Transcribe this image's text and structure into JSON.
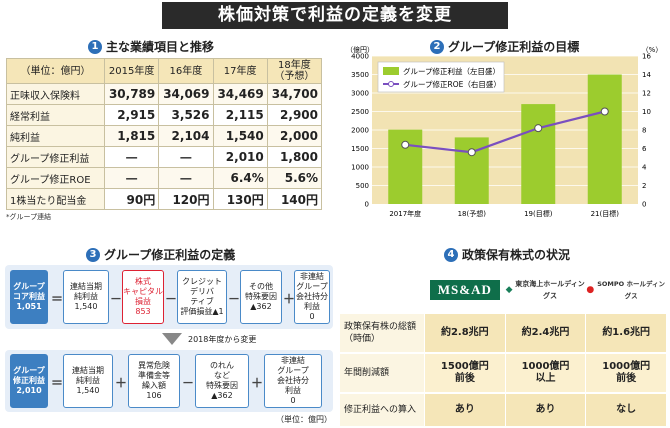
{
  "title": "株価対策で利益の定義を変更",
  "section1": {
    "num": "1",
    "title": "主な業績項目と推移"
  },
  "section2": {
    "num": "2",
    "title": "グループ修正利益の目標"
  },
  "section3": {
    "num": "3",
    "title": "グループ修正利益の定義"
  },
  "section4": {
    "num": "4",
    "title": "政策保有株式の状況"
  },
  "table1": {
    "headers": [
      "（単位：億円）",
      "2015年度",
      "16年度",
      "17年度",
      "18年度",
      "（予想）"
    ],
    "rows": [
      {
        "label": "正味収入保険料",
        "values": [
          "30,789",
          "34,069",
          "34,469",
          "34,700"
        ]
      },
      {
        "label": "経常利益",
        "values": [
          "2,915",
          "3,526",
          "2,115",
          "2,900"
        ]
      },
      {
        "label": "純利益",
        "values": [
          "1,815",
          "2,104",
          "1,540",
          "2,000"
        ]
      },
      {
        "label": "グループ修正利益",
        "values": [
          "―",
          "―",
          "2,010",
          "1,800"
        ]
      },
      {
        "label": "グループ修正ROE",
        "values": [
          "―",
          "―",
          "6.4%",
          "5.6%"
        ]
      },
      {
        "label": "1株当たり配当金",
        "values": [
          "90円",
          "120円",
          "130円",
          "140円"
        ]
      }
    ],
    "note": "*グループ連結"
  },
  "chart_data": {
    "type": "bar",
    "categories": [
      "2017年度",
      "18(予想)",
      "19(目標)",
      "21(目標)"
    ],
    "series": [
      {
        "name": "グループ修正利益（左目盛）",
        "type": "bar",
        "values": [
          2010,
          1800,
          2700,
          3500
        ],
        "color": "#9ccc2e"
      },
      {
        "name": "グループ修正ROE（右目盛）",
        "type": "line",
        "values": [
          6.4,
          5.6,
          8.2,
          10.0
        ],
        "color": "#7a4fc0"
      }
    ],
    "ylabel_left": "（億円）",
    "ylabel_right": "（%）",
    "ylim_left": [
      0,
      4000
    ],
    "ylim_right": [
      0,
      16
    ],
    "yticks_left": [
      "0",
      "500",
      "1000",
      "1500",
      "2000",
      "2500",
      "3000",
      "3500",
      "4000"
    ],
    "yticks_right": [
      "0",
      "2",
      "4",
      "6",
      "8",
      "10",
      "12",
      "14",
      "16"
    ]
  },
  "diagram": {
    "top": {
      "result": [
        "グループ",
        "コア利益",
        "1,051"
      ],
      "eq": "＝",
      "b1": [
        "連結当期",
        "純利益",
        "1,540"
      ],
      "op1": "－",
      "b2": [
        "株式",
        "キャピタル",
        "損益",
        "853"
      ],
      "op2": "－",
      "b3": [
        "クレジット",
        "デリバ",
        "ティブ",
        "評価損益▲1"
      ],
      "op3": "－",
      "b4": [
        "その他",
        "特殊要因",
        "▲362"
      ],
      "op4": "＋",
      "b5": [
        "非連結",
        "グループ",
        "会社持分",
        "利益",
        "0"
      ]
    },
    "change": "2018年度から変更",
    "bottom": {
      "result": [
        "グループ",
        "修正利益",
        "2,010"
      ],
      "eq": "＝",
      "b1": [
        "連結当期",
        "純利益",
        "1,540"
      ],
      "op1": "＋",
      "b2": [
        "異常危険",
        "準備金等",
        "繰入額",
        "106"
      ],
      "op2": "－",
      "b3": [
        "のれん",
        "など",
        "特殊要因",
        "▲362"
      ],
      "op3": "＋",
      "b4": [
        "非連結",
        "グループ",
        "会社持分",
        "利益",
        "0"
      ]
    },
    "unit": "（単位：億円）"
  },
  "table4": {
    "companies": [
      "MS&AD",
      "東京海上ホールディングス",
      "SOMPO ホールディングス"
    ],
    "rows": [
      {
        "label": "政策保有株の総額（時価）",
        "values": [
          "約2.8兆円",
          "約2.4兆円",
          "約1.6兆円"
        ]
      },
      {
        "label": "年間削減額",
        "values": [
          "1500億円前後",
          "1000億円以上",
          "1000億円前後"
        ]
      },
      {
        "label": "修正利益への算入",
        "values": [
          "あり",
          "あり",
          "なし"
        ]
      }
    ]
  }
}
